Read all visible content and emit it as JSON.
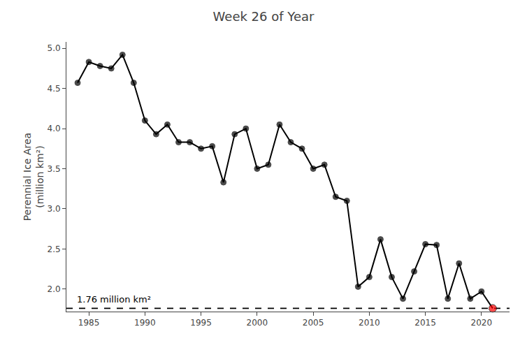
{
  "chart_data": {
    "type": "line",
    "title": "Week 26 of Year",
    "ylabel": "Perennial Ice Area\n(million km²)",
    "x": [
      1984,
      1985,
      1986,
      1987,
      1988,
      1989,
      1990,
      1991,
      1992,
      1993,
      1994,
      1995,
      1996,
      1997,
      1998,
      1999,
      2000,
      2001,
      2002,
      2003,
      2004,
      2005,
      2006,
      2007,
      2008,
      2009,
      2010,
      2011,
      2012,
      2013,
      2014,
      2015,
      2016,
      2017,
      2018,
      2019,
      2020,
      2021
    ],
    "values": [
      4.57,
      4.83,
      4.78,
      4.75,
      4.92,
      4.57,
      4.1,
      3.93,
      4.05,
      3.83,
      3.83,
      3.75,
      3.78,
      3.33,
      3.93,
      4.0,
      3.5,
      3.55,
      4.05,
      3.83,
      3.75,
      3.5,
      3.55,
      3.15,
      3.1,
      2.03,
      2.15,
      2.62,
      2.15,
      1.88,
      2.22,
      2.56,
      2.55,
      1.88,
      2.32,
      1.88,
      1.97,
      1.76
    ],
    "color": "#000000",
    "colors": [
      "#000000",
      "#000000",
      "#000000",
      "#000000",
      "#000000",
      "#000000",
      "#000000",
      "#000000",
      "#000000",
      "#000000",
      "#000000",
      "#000000",
      "#000000",
      "#000000",
      "#000000",
      "#000000",
      "#000000",
      "#000000",
      "#000000",
      "#000000",
      "#000000",
      "#000000",
      "#000000",
      "#000000",
      "#000000",
      "#000000",
      "#000000",
      "#000000",
      "#000000",
      "#000000",
      "#000000",
      "#000000",
      "#000000",
      "#000000",
      "#000000",
      "#000000",
      "#000000",
      "#ff0000"
    ],
    "marker": "circle",
    "reference_line": {
      "y": 1.76,
      "line_style": "dashed",
      "color": "#000000",
      "label": "1.76 million km²"
    },
    "xlim": [
      1983.0,
      2022.5
    ],
    "ylim": [
      1.72,
      5.08
    ],
    "xticks": [
      1985,
      1990,
      1995,
      2000,
      2005,
      2010,
      2015,
      2020
    ],
    "yticks": [
      {
        "value": 2.0,
        "label": "2.0"
      },
      {
        "value": 2.5,
        "label": "2.5"
      },
      {
        "value": 3.0,
        "label": "3.0"
      },
      {
        "value": 3.5,
        "label": "3.5"
      },
      {
        "value": 4.0,
        "label": "4.0"
      },
      {
        "value": 4.5,
        "label": "4.5"
      },
      {
        "value": 5.0,
        "label": "5.0"
      }
    ],
    "grid": false
  }
}
